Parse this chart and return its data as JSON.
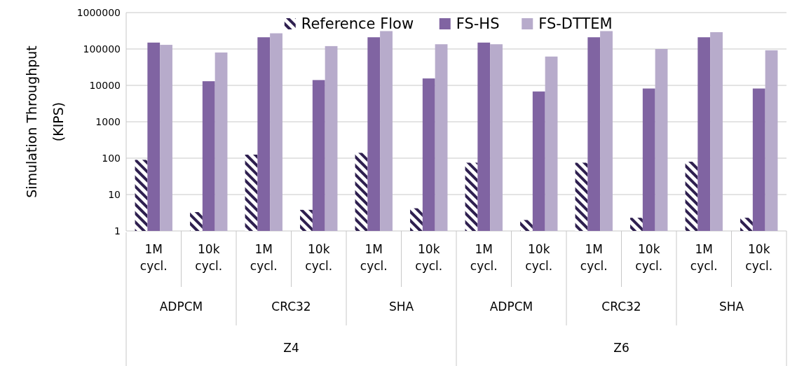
{
  "chart_data": {
    "type": "bar",
    "ylabel": "Simulation Throughput (KIPS)",
    "categories": [
      "1M cycl.",
      "10k cycl.",
      "1M cycl.",
      "10k cycl.",
      "1M cycl.",
      "10k cycl.",
      "1M cycl.",
      "10k cycl.",
      "1M cycl.",
      "10k cycl.",
      "1M cycl.",
      "10k cycl."
    ],
    "series": [
      {
        "name": "Reference Flow",
        "color": "#2e1f4f",
        "values": [
          90,
          3.3,
          125,
          3.8,
          140,
          4.2,
          75,
          2,
          75,
          2.3,
          80,
          2.3
        ]
      },
      {
        "name": "FS-HS",
        "color": "#8064a2",
        "values": [
          150000,
          13000,
          210000,
          14000,
          210000,
          15500,
          150000,
          6800,
          210000,
          8200,
          210000,
          8200
        ]
      },
      {
        "name": "FS-DTTEM",
        "color": "#b7abcb",
        "values": [
          130000,
          80000,
          270000,
          120000,
          310000,
          135000,
          135000,
          62000,
          310000,
          100000,
          290000,
          92000
        ]
      }
    ],
    "annotations": [
      "ADPCM",
      "CRC32",
      "SHA",
      "ADPCM",
      "CRC32",
      "SHA",
      "Z4",
      "Z6"
    ],
    "log": true,
    "ylim": [
      1,
      1000000
    ],
    "yticks": [
      1,
      10,
      100,
      1000,
      10000,
      100000,
      1000000
    ],
    "grid": "y",
    "legend": "top"
  }
}
